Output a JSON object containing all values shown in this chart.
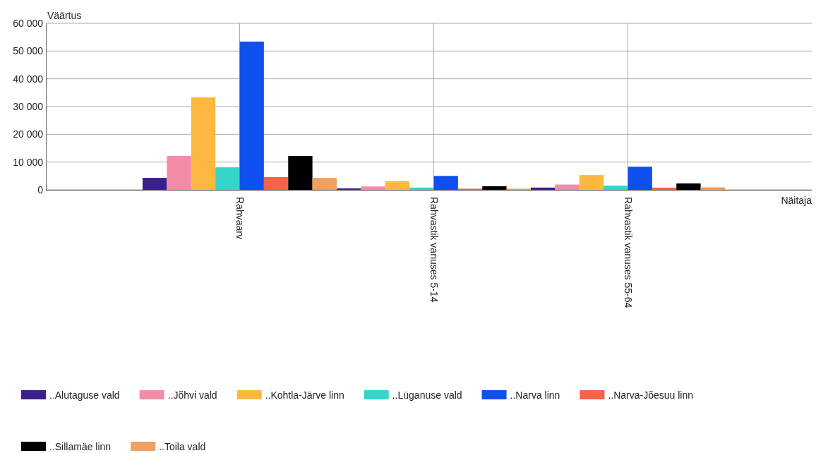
{
  "chart_data": {
    "type": "bar",
    "ylabel": "Väärtus",
    "xlabel": "Näitaja",
    "categories": [
      "Rahvaarv",
      "Rahvastik vanuses 5-14",
      "Rahvastik vanuses 55-64"
    ],
    "ylim": [
      0,
      60000
    ],
    "yticks": [
      {
        "value": 0,
        "label": "0"
      },
      {
        "value": 10000,
        "label": "10 000"
      },
      {
        "value": 20000,
        "label": "20 000"
      },
      {
        "value": 30000,
        "label": "30 000"
      },
      {
        "value": 40000,
        "label": "40 000"
      },
      {
        "value": 50000,
        "label": "50 000"
      },
      {
        "value": 60000,
        "label": "60 000"
      }
    ],
    "grid": true,
    "legend": "bottom",
    "series": [
      {
        "name": "..Alutaguse vald",
        "color": "#3b1f8c",
        "values": [
          4300,
          500,
          800
        ]
      },
      {
        "name": "..Jõhvi vald",
        "color": "#f28ca8",
        "values": [
          12200,
          1200,
          1900
        ]
      },
      {
        "name": "..Kohtla-Järve linn",
        "color": "#fdb840",
        "values": [
          33300,
          3100,
          5300
        ]
      },
      {
        "name": "..Lüganuse vald",
        "color": "#33d6c8",
        "values": [
          8100,
          800,
          1500
        ]
      },
      {
        "name": "..Narva linn",
        "color": "#0f4ff0",
        "values": [
          53400,
          5000,
          8300
        ]
      },
      {
        "name": "..Narva-Jõesuu linn",
        "color": "#f5634a",
        "values": [
          4600,
          400,
          800
        ]
      },
      {
        "name": "..Sillamäe linn",
        "color": "#000000",
        "values": [
          12200,
          1300,
          2300
        ]
      },
      {
        "name": "..Toila vald",
        "color": "#f0a060",
        "values": [
          4300,
          400,
          900
        ]
      }
    ]
  }
}
